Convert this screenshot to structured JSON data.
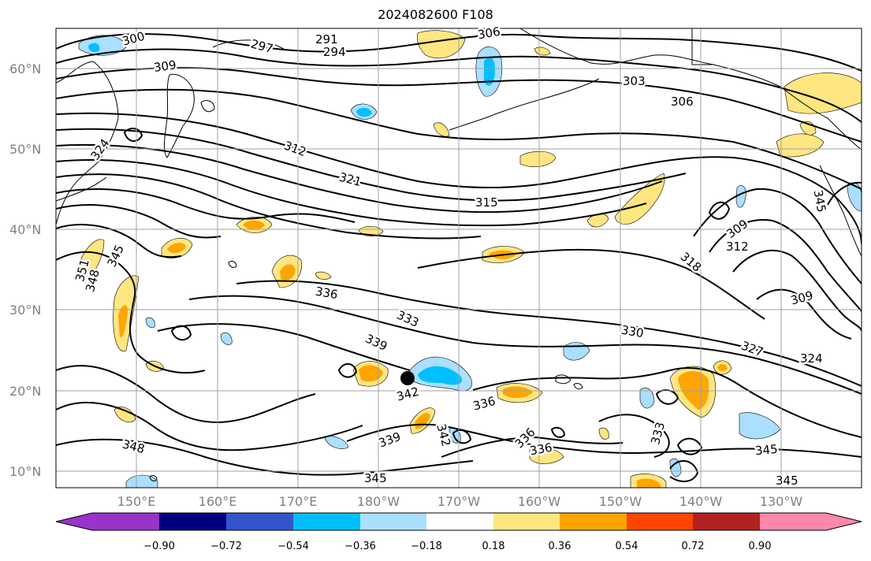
{
  "title": "2024082600 F108",
  "lat_labels": [
    "60°N",
    "50°N",
    "40°N",
    "30°N",
    "20°N",
    "10°N"
  ],
  "lon_labels": [
    "150°E",
    "160°E",
    "170°E",
    "180°W",
    "170°W",
    "160°W",
    "150°W",
    "140°W",
    "130°W"
  ],
  "colorbar": {
    "colors": [
      "#9933cc",
      "#000080",
      "#3355cc",
      "#00bfff",
      "#aadfff",
      "#ffffff",
      "#ffe680",
      "#ffa500",
      "#ff4500",
      "#b22222",
      "#ff88aa"
    ],
    "tick_labels": [
      "−0.90",
      "−0.72",
      "−0.54",
      "−0.36",
      "−0.18",
      "0.18",
      "0.36",
      "0.54",
      "0.72",
      "0.90"
    ]
  },
  "contour_labels": [
    "300",
    "297",
    "291",
    "294",
    "306",
    "309",
    "303",
    "306",
    "324",
    "312",
    "321",
    "315",
    "309",
    "312",
    "318",
    "309",
    "345",
    "351",
    "348",
    "336",
    "333",
    "330",
    "327",
    "324",
    "339",
    "342",
    "336",
    "339",
    "342",
    "336",
    "336",
    "333",
    "348",
    "345",
    "345",
    "345",
    "345"
  ]
}
